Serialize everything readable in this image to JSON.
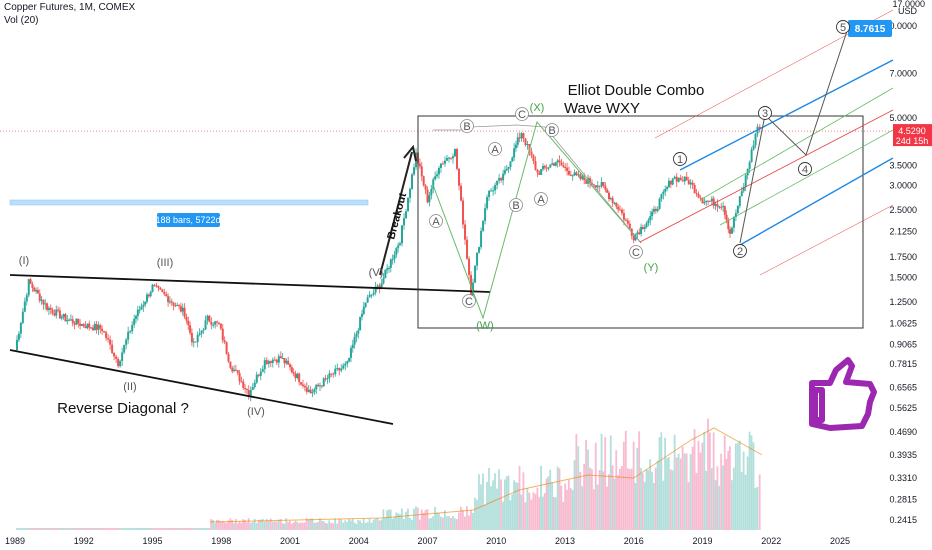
{
  "header": {
    "symbol": "Copper Futures, 1M, COMEX",
    "volume": "Vol (20)"
  },
  "chart_data": {
    "type": "candlestick",
    "y_axis": {
      "scale": "log",
      "unit": "USD",
      "top_label": "17.0000",
      "ticks": [
        "10.0000",
        "7.0000",
        "5.0000",
        "3.5000",
        "3.0000",
        "2.5000",
        "2.1250",
        "1.7500",
        "1.5000",
        "1.2500",
        "1.0625",
        "0.9065",
        "0.7815",
        "0.6565",
        "0.5625",
        "0.4690",
        "0.3935",
        "0.3310",
        "0.2815",
        "0.2415"
      ]
    },
    "x_axis": {
      "ticks": [
        "1989",
        "1992",
        "1995",
        "1998",
        "2001",
        "2004",
        "2007",
        "2010",
        "2013",
        "2016",
        "2019",
        "2022",
        "2025"
      ]
    },
    "price_path": [
      [
        1989.0,
        0.87
      ],
      [
        1989.6,
        1.45
      ],
      [
        1990.4,
        1.2
      ],
      [
        1991.2,
        1.1
      ],
      [
        1992.0,
        1.05
      ],
      [
        1992.8,
        1.02
      ],
      [
        1993.5,
        0.79
      ],
      [
        1994.2,
        1.1
      ],
      [
        1995.0,
        1.4
      ],
      [
        1995.6,
        1.3
      ],
      [
        1996.4,
        1.15
      ],
      [
        1996.8,
        0.9
      ],
      [
        1997.4,
        1.1
      ],
      [
        1997.9,
        1.05
      ],
      [
        1998.4,
        0.78
      ],
      [
        1999.2,
        0.63
      ],
      [
        1999.9,
        0.8
      ],
      [
        2000.6,
        0.82
      ],
      [
        2001.4,
        0.7
      ],
      [
        2001.9,
        0.63
      ],
      [
        2002.8,
        0.72
      ],
      [
        2003.5,
        0.78
      ],
      [
        2004.3,
        1.25
      ],
      [
        2005.0,
        1.45
      ],
      [
        2005.8,
        2.0
      ],
      [
        2006.5,
        3.8
      ],
      [
        2007.0,
        2.7
      ],
      [
        2007.5,
        3.5
      ],
      [
        2008.2,
        3.9
      ],
      [
        2008.9,
        1.35
      ],
      [
        2009.6,
        2.8
      ],
      [
        2010.3,
        3.2
      ],
      [
        2011.1,
        4.5
      ],
      [
        2011.8,
        3.3
      ],
      [
        2012.6,
        3.6
      ],
      [
        2013.5,
        3.2
      ],
      [
        2014.6,
        3.0
      ],
      [
        2015.4,
        2.5
      ],
      [
        2016.0,
        2.05
      ],
      [
        2016.8,
        2.4
      ],
      [
        2017.7,
        3.2
      ],
      [
        2018.4,
        3.1
      ],
      [
        2019.0,
        2.7
      ],
      [
        2019.9,
        2.6
      ],
      [
        2020.2,
        2.1
      ],
      [
        2020.8,
        3.0
      ],
      [
        2021.4,
        4.7
      ],
      [
        2021.6,
        4.53
      ]
    ],
    "last_price": "4.5290",
    "countdown": "24d 15h",
    "target_price": "8.7615",
    "volume_ticks_visible": true,
    "annotations": {
      "title_line1": "Elliot Double Combo",
      "title_line2": "Wave WXY",
      "breakout": "Breakout",
      "reverse_diagonal": "Reverse Diagonal ?",
      "measure": "188 bars, 5722d",
      "wave_labels": [
        "(I)",
        "(II)",
        "(III)",
        "(IV)",
        "(V)",
        "(W)",
        "(X)",
        "(Y)",
        "A",
        "B",
        "C",
        "1",
        "2",
        "3",
        "4",
        "5"
      ]
    },
    "grid": false,
    "colors": {
      "up": "#26a69a",
      "down": "#ef5350",
      "channel_blue": "#1e88e5",
      "channel_red": "#e53935",
      "channel_green": "#66bb6a",
      "badge": "#2196f3",
      "price_badge": "#f23645",
      "thumb": "#9c27b0"
    }
  }
}
